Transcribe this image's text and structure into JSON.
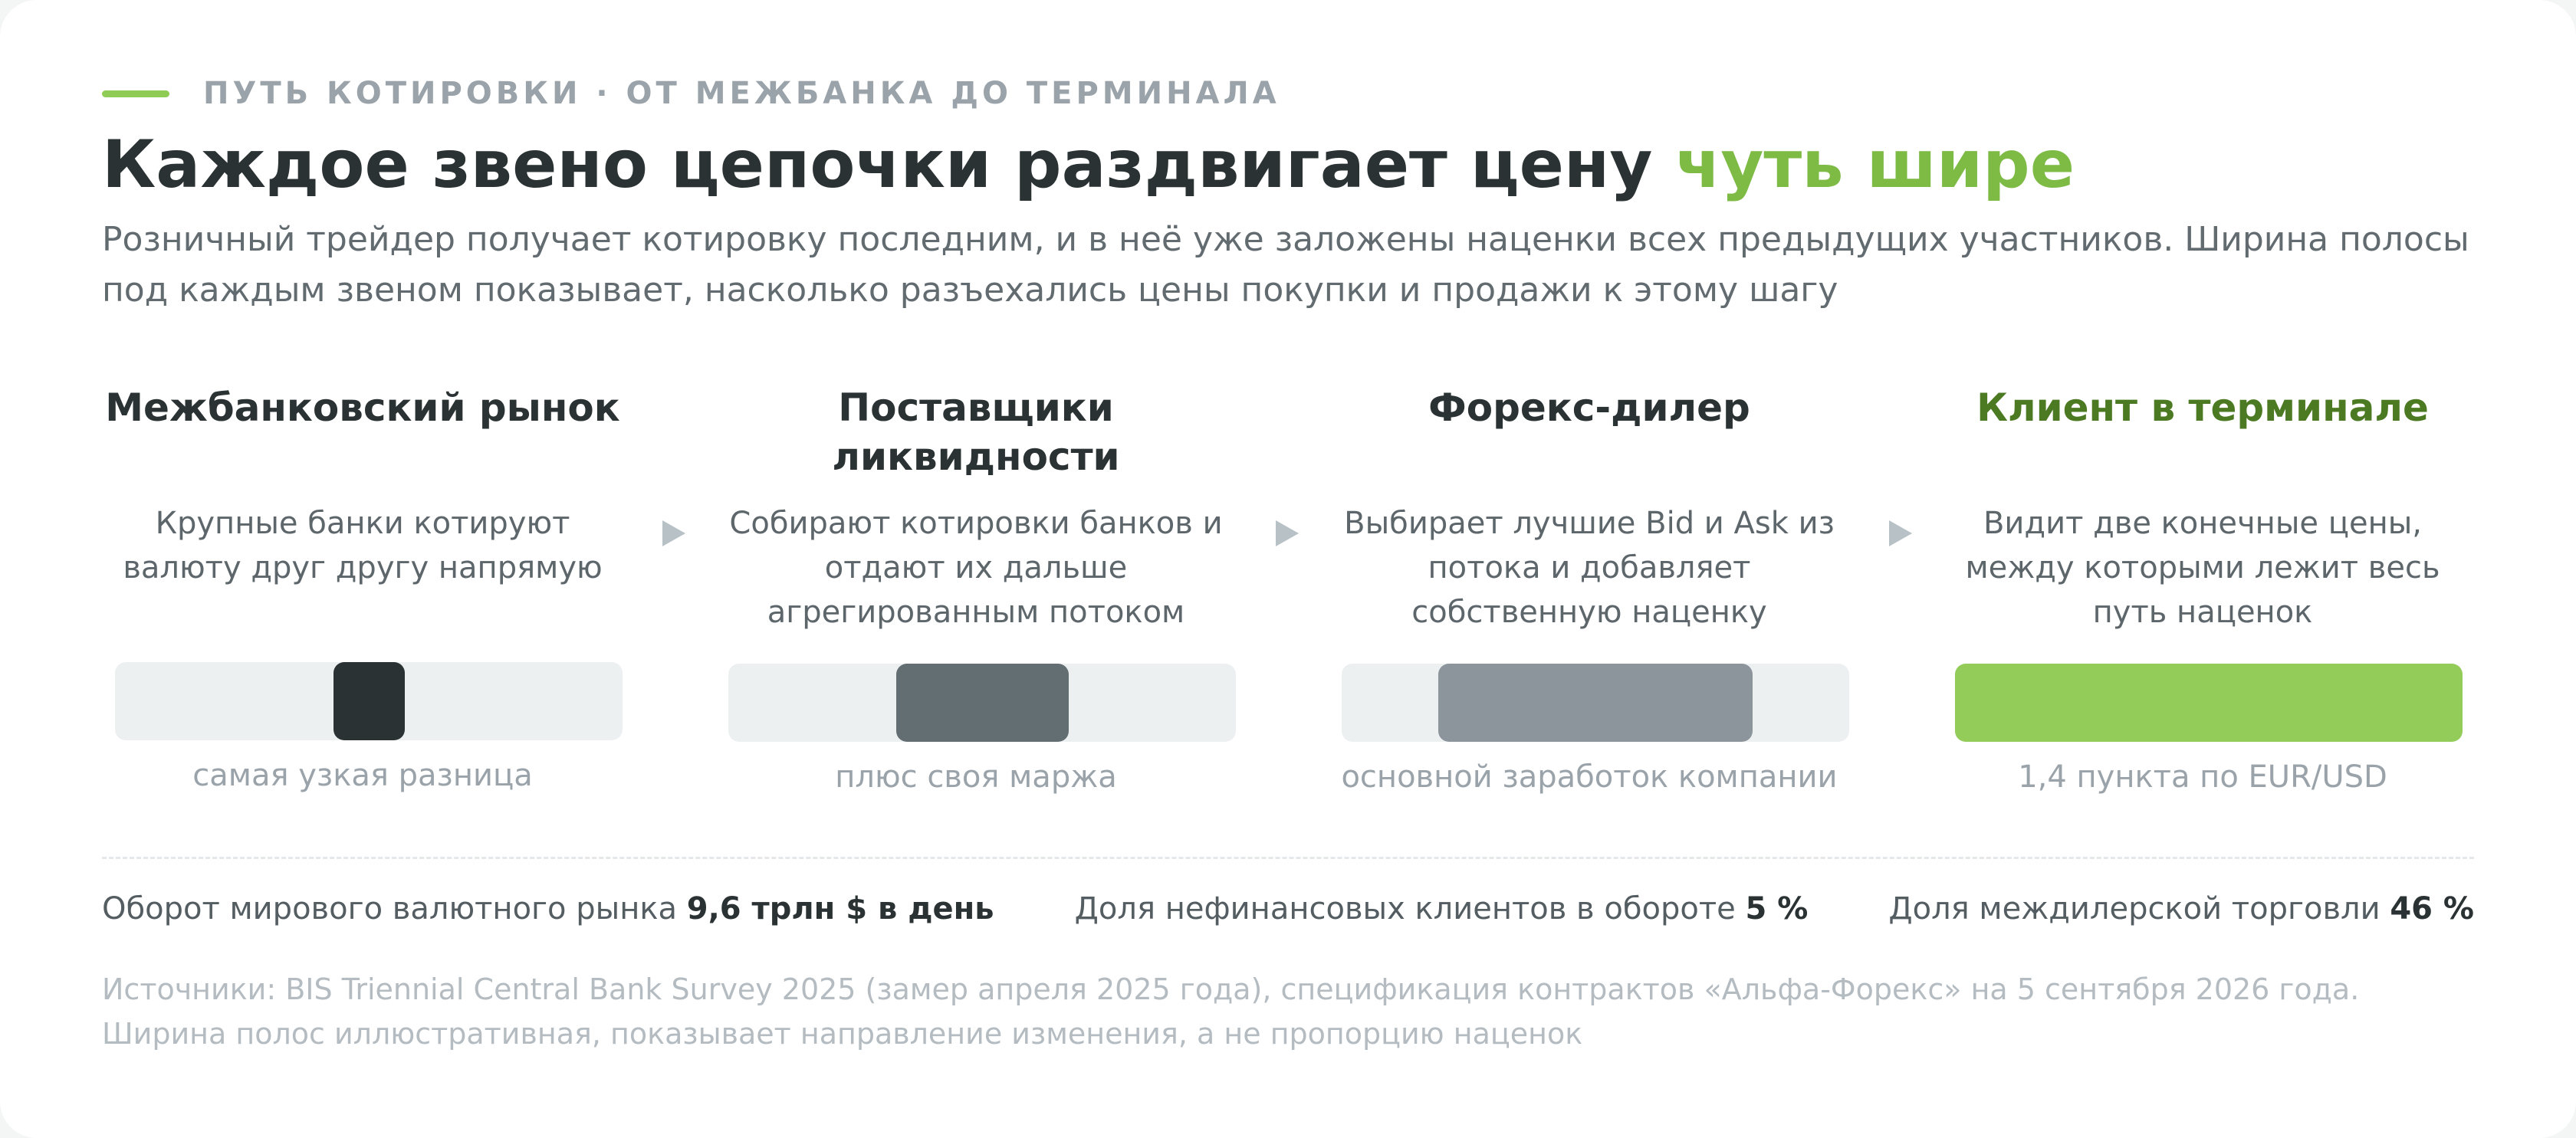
{
  "header": {
    "eyebrow": "ПУТЬ КОТИРОВКИ · ОТ МЕЖБАНКА ДО ТЕРМИНАЛА",
    "title_main": "Каждое звено цепочки раздвигает цену ",
    "title_accent": "чуть шире",
    "lede": "Розничный трейдер получает котировку последним, и в неё уже заложены наценки всех предыдущих участников. Ширина полосы под каждым звеном показывает, насколько разъехались цены покупки и продажи к этому шагу"
  },
  "steps": [
    {
      "title": "Межбанковский рынок",
      "description": "Крупные банки котируют валюту друг другу напрямую",
      "caption": "самая узкая разница",
      "spread_share": 0.14,
      "color": "#2b3233"
    },
    {
      "title": "Поставщики ликвидности",
      "description": "Собирают котировки банков и отдают их дальше агрегированным потоком",
      "caption": "плюс своя маржа",
      "spread_share": 0.34,
      "color": "#636e72"
    },
    {
      "title": "Форекс-дилер",
      "description": "Выбирает лучшие Bid и Ask из потока и добавляет собственную наценку",
      "caption": "основной заработок компании",
      "spread_share": 0.62,
      "color": "#8c959b"
    },
    {
      "title": "Клиент в терминале",
      "description": "Видит две конечные цены, между которыми лежит весь путь наценок",
      "caption": "1,4 пункта по EUR/USD",
      "spread_share": 1.0,
      "color": "#94cc59"
    }
  ],
  "stats": [
    {
      "label": "Оборот мирового валютного рынка",
      "value": "9,6 трлн $ в день"
    },
    {
      "label": "Доля нефинансовых клиентов в обороте",
      "value": "5 %"
    },
    {
      "label": "Доля междилерской торговли",
      "value": "46 %"
    }
  ],
  "sources": [
    "Источники: BIS Triennial Central Bank Survey 2025 (замер апреля 2025 года), спецификация контрактов «Альфа-Форекс» на 5 сентября 2026 года.",
    "Ширина полос иллюстративная, показывает направление изменения, а не пропорцию наценок"
  ]
}
